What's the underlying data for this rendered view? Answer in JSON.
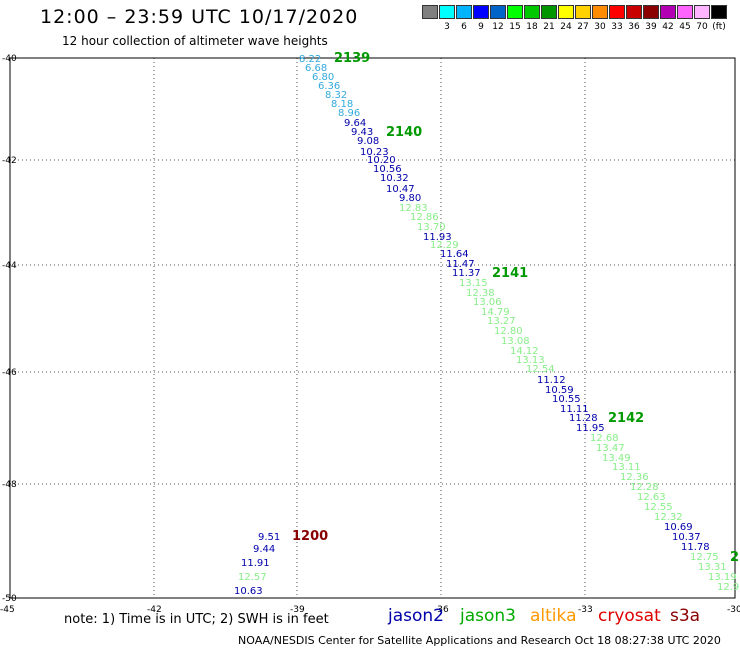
{
  "header": {
    "title": "12:00 – 23:59 UTC 10/17/2020",
    "subtitle": "12 hour collection of altimeter wave heights"
  },
  "colorbar": {
    "cells": [
      {
        "color": "#808080",
        "label": ""
      },
      {
        "color": "#00ffff",
        "label": "3"
      },
      {
        "color": "#00b4ff",
        "label": "6"
      },
      {
        "color": "#0000ff",
        "label": "9"
      },
      {
        "color": "#0064c8",
        "label": "12"
      },
      {
        "color": "#00ff00",
        "label": "15"
      },
      {
        "color": "#00c800",
        "label": "18"
      },
      {
        "color": "#009600",
        "label": "21"
      },
      {
        "color": "#ffff00",
        "label": "24"
      },
      {
        "color": "#ffd200",
        "label": "27"
      },
      {
        "color": "#ff8c00",
        "label": "30"
      },
      {
        "color": "#ff0000",
        "label": "33"
      },
      {
        "color": "#c80000",
        "label": "36"
      },
      {
        "color": "#8b0000",
        "label": "39"
      },
      {
        "color": "#b400b4",
        "label": "42"
      },
      {
        "color": "#ff64ff",
        "label": "45"
      },
      {
        "color": "#ffb4ff",
        "label": "70"
      },
      {
        "color": "#000000",
        "label": "(ft)"
      }
    ]
  },
  "axes": {
    "lat_labels": [
      "-40",
      "-42",
      "-44",
      "-46",
      "-48",
      "-50"
    ],
    "lon_labels": [
      "-45",
      "-42",
      "-39",
      "-36",
      "-33",
      "-30"
    ]
  },
  "colors": {
    "jason2": "#0000aa",
    "jason3": "#00aa00",
    "jason3_light": "#88ee88",
    "saral_cyan": "#33aadd",
    "altika": "#ff9900",
    "cryosat": "#dd0000",
    "s3a": "#880000"
  },
  "points": [
    {
      "v": "8.22",
      "c": "#33aadd"
    },
    {
      "v": "6.68",
      "c": "#33aadd"
    },
    {
      "v": "6.80",
      "c": "#33aadd"
    },
    {
      "v": "6.36",
      "c": "#33aadd"
    },
    {
      "v": "8.32",
      "c": "#33aadd"
    },
    {
      "v": "8.18",
      "c": "#33aadd"
    },
    {
      "v": "8.96",
      "c": "#33aadd"
    },
    {
      "v": "9.64",
      "c": "#0000aa"
    },
    {
      "v": "9.43",
      "c": "#0000aa"
    },
    {
      "v": "9.08",
      "c": "#0000aa"
    },
    {
      "v": "10.23",
      "c": "#0000aa"
    },
    {
      "v": "10.20",
      "c": "#0000aa"
    },
    {
      "v": "10.56",
      "c": "#0000aa"
    },
    {
      "v": "10.32",
      "c": "#0000aa"
    },
    {
      "v": "10.47",
      "c": "#0000aa"
    },
    {
      "v": "9.80",
      "c": "#0000aa"
    },
    {
      "v": "12.83",
      "c": "#88ee88"
    },
    {
      "v": "12.86",
      "c": "#88ee88"
    },
    {
      "v": "13.70",
      "c": "#88ee88"
    },
    {
      "v": "11.93",
      "c": "#0000aa"
    },
    {
      "v": "12.29",
      "c": "#88ee88"
    },
    {
      "v": "11.64",
      "c": "#0000aa"
    },
    {
      "v": "11.47",
      "c": "#0000aa"
    },
    {
      "v": "11.37",
      "c": "#0000aa"
    },
    {
      "v": "13.15",
      "c": "#88ee88"
    },
    {
      "v": "12.38",
      "c": "#88ee88"
    },
    {
      "v": "13.06",
      "c": "#88ee88"
    },
    {
      "v": "14.79",
      "c": "#88ee88"
    },
    {
      "v": "13.27",
      "c": "#88ee88"
    },
    {
      "v": "12.80",
      "c": "#88ee88"
    },
    {
      "v": "13.08",
      "c": "#88ee88"
    },
    {
      "v": "14.12",
      "c": "#88ee88"
    },
    {
      "v": "13.13",
      "c": "#88ee88"
    },
    {
      "v": "12.54",
      "c": "#88ee88"
    },
    {
      "v": "11.12",
      "c": "#0000aa"
    },
    {
      "v": "10.59",
      "c": "#0000aa"
    },
    {
      "v": "10.55",
      "c": "#0000aa"
    },
    {
      "v": "11.11",
      "c": "#0000aa"
    },
    {
      "v": "11.28",
      "c": "#0000aa"
    },
    {
      "v": "11.95",
      "c": "#0000aa"
    },
    {
      "v": "12.68",
      "c": "#88ee88"
    },
    {
      "v": "13.47",
      "c": "#88ee88"
    },
    {
      "v": "13.49",
      "c": "#88ee88"
    },
    {
      "v": "13.11",
      "c": "#88ee88"
    },
    {
      "v": "12.36",
      "c": "#88ee88"
    },
    {
      "v": "12.28",
      "c": "#88ee88"
    },
    {
      "v": "12.63",
      "c": "#88ee88"
    },
    {
      "v": "12.55",
      "c": "#88ee88"
    },
    {
      "v": "12.32",
      "c": "#88ee88"
    },
    {
      "v": "10.69",
      "c": "#0000aa"
    },
    {
      "v": "10.37",
      "c": "#0000aa"
    },
    {
      "v": "11.78",
      "c": "#0000aa"
    },
    {
      "v": "12.75",
      "c": "#88ee88"
    },
    {
      "v": "13.31",
      "c": "#88ee88"
    },
    {
      "v": "13.19",
      "c": "#88ee88"
    },
    {
      "v": "12.9",
      "c": "#88ee88"
    },
    {
      "v": "9.51",
      "c": "#0000aa"
    },
    {
      "v": "9.44",
      "c": "#0000aa"
    },
    {
      "v": "11.91",
      "c": "#0000aa"
    },
    {
      "v": "12.57",
      "c": "#88ee88"
    },
    {
      "v": "10.63",
      "c": "#0000aa"
    }
  ],
  "pass_labels": [
    {
      "t": "2139",
      "c": "#009900"
    },
    {
      "t": "2140",
      "c": "#009900"
    },
    {
      "t": "2141",
      "c": "#009900"
    },
    {
      "t": "2142",
      "c": "#009900"
    },
    {
      "t": "2",
      "c": "#009900"
    },
    {
      "t": "1200",
      "c": "#880000"
    }
  ],
  "note": "note: 1) Time is in UTC; 2) SWH is in feet",
  "legend": {
    "jason2": "jason2",
    "jason3": "jason3",
    "altika": "altika",
    "cryosat": "cryosat",
    "s3a": "s3a"
  },
  "footer": "NOAA/NESDIS Center for Satellite Applications and Research    Oct 18 08:27:38 UTC 2020"
}
